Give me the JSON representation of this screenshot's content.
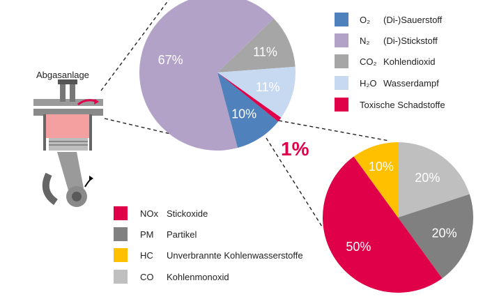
{
  "engine": {
    "label": "Abgasanlage"
  },
  "chart_data": [
    {
      "type": "pie",
      "slices": [
        {
          "label": "O₂ (Di-)Sauerstoff",
          "value": 10,
          "display": "10%",
          "color": "#4f81bd"
        },
        {
          "label": "N₂ (Di-)Stickstoff",
          "value": 67,
          "display": "67%",
          "color": "#b3a2c7"
        },
        {
          "label": "CO₂ Kohlendioxid",
          "value": 11,
          "display": "11%",
          "color": "#a6a6a6"
        },
        {
          "label": "H₂O Wasserdampf",
          "value": 11,
          "display": "11%",
          "color": "#c6d9f1"
        },
        {
          "label": "Toxische Schadstoffe",
          "value": 1,
          "display": "1%",
          "color": "#e0004a"
        }
      ],
      "legend": "right"
    },
    {
      "type": "pie",
      "slices": [
        {
          "label": "NOx Stickoxide",
          "value": 50,
          "display": "50%",
          "color": "#e0004a"
        },
        {
          "label": "PM Partikel",
          "value": 20,
          "display": "20%",
          "color": "#808080"
        },
        {
          "label": "HC Unverbrannte Kohlenwasserstoffe",
          "value": 10,
          "display": "10%",
          "color": "#ffc000"
        },
        {
          "label": "CO Kohlenmonoxid",
          "value": 20,
          "display": "20%",
          "color": "#bfbfbf"
        }
      ],
      "legend": "left"
    }
  ],
  "legend1": [
    {
      "code": "O₂",
      "text": "(Di-)Sauerstoff",
      "color": "#4f81bd"
    },
    {
      "code": "N₂",
      "text": "(Di-)Stickstoff",
      "color": "#b3a2c7"
    },
    {
      "code": "CO₂",
      "text": "Kohlendioxid",
      "color": "#a6a6a6"
    },
    {
      "code": "H₂O",
      "text": "Wasserdampf",
      "color": "#c6d9f1"
    },
    {
      "code": "",
      "text": "Toxische Schadstoffe",
      "color": "#e0004a"
    }
  ],
  "legend2": [
    {
      "code": "NOx",
      "text": "Stickoxide",
      "color": "#e0004a"
    },
    {
      "code": "PM",
      "text": "Partikel",
      "color": "#808080"
    },
    {
      "code": "HC",
      "text": "Unverbrannte Kohlenwasserstoffe",
      "color": "#ffc000"
    },
    {
      "code": "CO",
      "text": "Kohlenmonoxid",
      "color": "#bfbfbf"
    }
  ],
  "callout": "1%"
}
